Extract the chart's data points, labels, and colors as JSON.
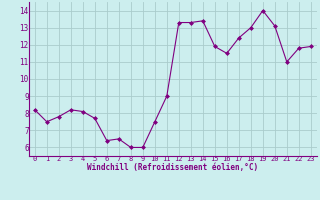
{
  "x": [
    0,
    1,
    2,
    3,
    4,
    5,
    6,
    7,
    8,
    9,
    10,
    11,
    12,
    13,
    14,
    15,
    16,
    17,
    18,
    19,
    20,
    21,
    22,
    23
  ],
  "y": [
    8.2,
    7.5,
    7.8,
    8.2,
    8.1,
    7.7,
    6.4,
    6.5,
    6.0,
    6.0,
    7.5,
    9.0,
    13.3,
    13.3,
    13.4,
    11.9,
    11.5,
    12.4,
    13.0,
    14.0,
    13.1,
    11.0,
    11.8,
    11.9
  ],
  "line_color": "#800080",
  "marker": "D",
  "marker_size": 2,
  "bg_color": "#cceeee",
  "grid_color": "#aacccc",
  "xlabel": "Windchill (Refroidissement éolien,°C)",
  "xlabel_color": "#800080",
  "tick_color": "#800080",
  "ylim": [
    5.5,
    14.5
  ],
  "xlim": [
    -0.5,
    23.5
  ],
  "yticks": [
    6,
    7,
    8,
    9,
    10,
    11,
    12,
    13,
    14
  ],
  "xticks": [
    0,
    1,
    2,
    3,
    4,
    5,
    6,
    7,
    8,
    9,
    10,
    11,
    12,
    13,
    14,
    15,
    16,
    17,
    18,
    19,
    20,
    21,
    22,
    23
  ],
  "figsize": [
    3.2,
    2.0
  ],
  "dpi": 100
}
